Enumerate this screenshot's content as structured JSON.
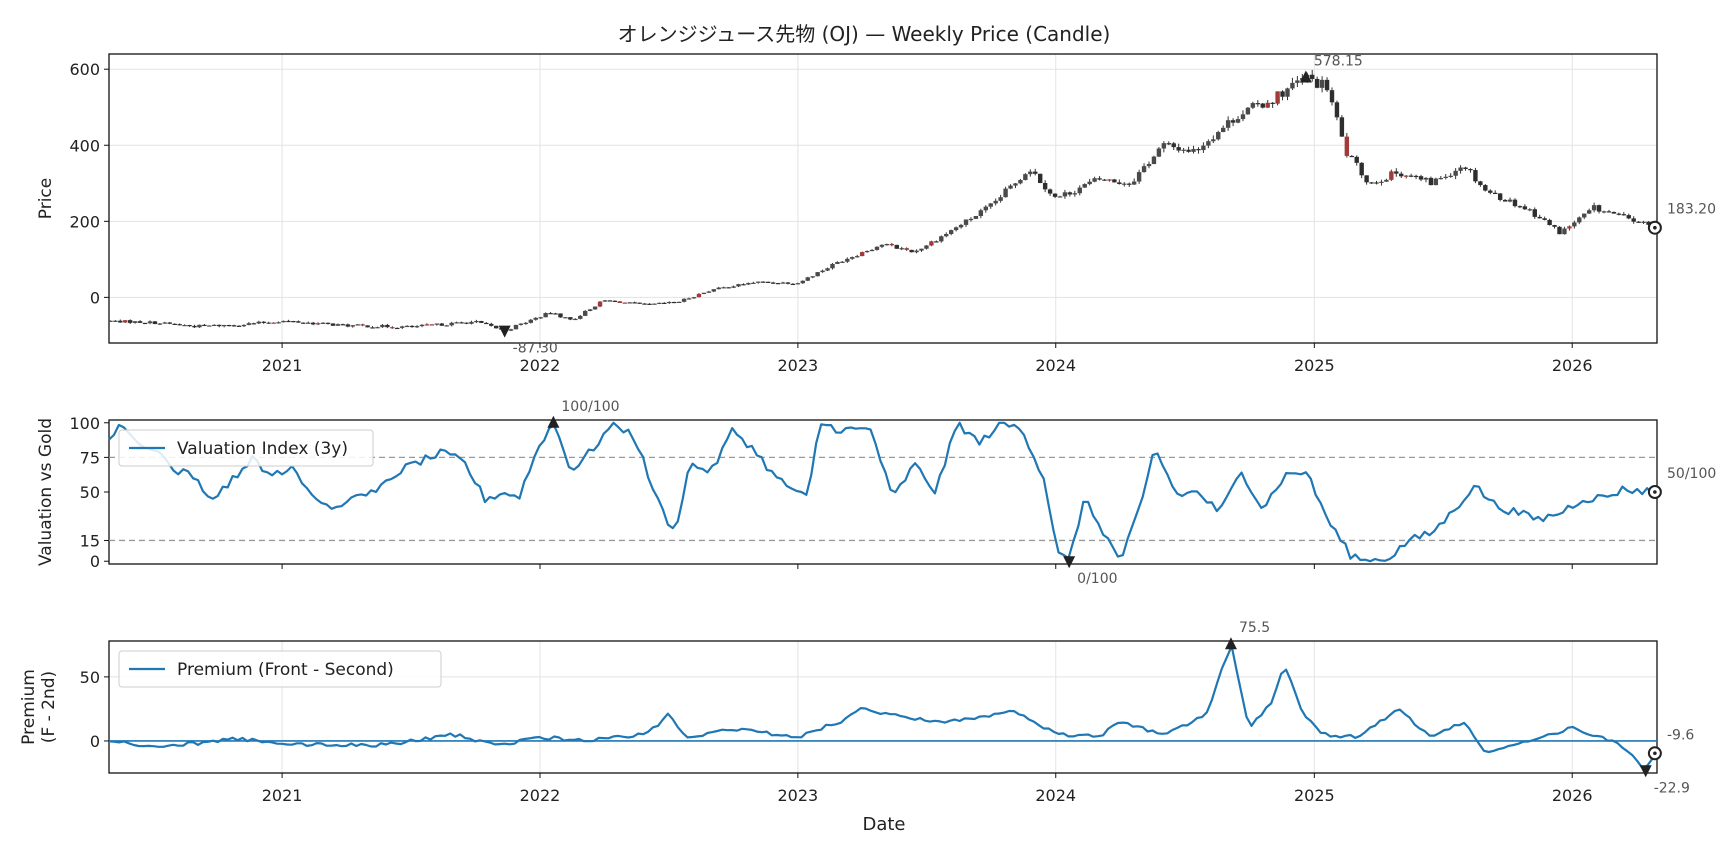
{
  "title": "オレンジジュース先物 (OJ) — Weekly Price (Candle)",
  "xlabel": "Date",
  "chart_data": [
    {
      "type": "candlestick",
      "ylabel": "Price",
      "yticks": [
        0,
        200,
        400,
        600
      ],
      "ylim": [
        -120,
        640
      ],
      "xlim": [
        "2020-05-01",
        "2026-05-01"
      ],
      "xticks": [
        "2021",
        "2022",
        "2023",
        "2024",
        "2025",
        "2026"
      ],
      "grid": true,
      "anchors": [
        [
          "2020-05-01",
          -62
        ],
        [
          "2020-07-01",
          -66
        ],
        [
          "2020-09-01",
          -76
        ],
        [
          "2020-11-01",
          -72
        ],
        [
          "2021-01-01",
          -62
        ],
        [
          "2021-04-01",
          -74
        ],
        [
          "2021-07-01",
          -78
        ],
        [
          "2021-10-01",
          -64
        ],
        [
          "2021-11-12",
          -87.3
        ],
        [
          "2022-01-15",
          -40
        ],
        [
          "2022-02-15",
          -60
        ],
        [
          "2022-04-01",
          -8
        ],
        [
          "2022-06-01",
          -20
        ],
        [
          "2022-07-15",
          -12
        ],
        [
          "2022-09-01",
          20
        ],
        [
          "2022-11-01",
          40
        ],
        [
          "2023-01-01",
          38
        ],
        [
          "2023-03-01",
          95
        ],
        [
          "2023-05-01",
          140
        ],
        [
          "2023-06-15",
          120
        ],
        [
          "2023-08-01",
          170
        ],
        [
          "2023-10-01",
          240
        ],
        [
          "2023-11-25",
          340
        ],
        [
          "2024-01-01",
          260
        ],
        [
          "2024-03-01",
          310
        ],
        [
          "2024-04-15",
          300
        ],
        [
          "2024-06-01",
          400
        ],
        [
          "2024-07-15",
          385
        ],
        [
          "2024-09-15",
          480
        ],
        [
          "2024-11-01",
          520
        ],
        [
          "2024-12-20",
          578.15
        ],
        [
          "2025-01-20",
          550
        ],
        [
          "2025-02-15",
          380
        ],
        [
          "2025-03-20",
          300
        ],
        [
          "2025-05-01",
          330
        ],
        [
          "2025-06-15",
          300
        ],
        [
          "2025-08-01",
          350
        ],
        [
          "2025-09-01",
          280
        ],
        [
          "2025-11-01",
          230
        ],
        [
          "2025-12-15",
          170
        ],
        [
          "2026-02-01",
          235
        ],
        [
          "2026-04-01",
          200
        ],
        [
          "2026-04-28",
          183.2
        ]
      ],
      "annotations": [
        {
          "text": "578.15",
          "date": "2024-12-20",
          "value": 578.15,
          "marker": "max"
        },
        {
          "text": "-87.30",
          "date": "2021-11-12",
          "value": -87.3,
          "marker": "min"
        },
        {
          "text": "183.20",
          "date": "2026-04-28",
          "value": 183.2,
          "marker": "last"
        }
      ]
    },
    {
      "type": "line",
      "ylabel": "Valuation vs Gold",
      "yticks": [
        0,
        15,
        50,
        75,
        100
      ],
      "ylim": [
        -2,
        102
      ],
      "reference_lines": [
        15,
        75
      ],
      "legend": "Valuation Index (3y)",
      "legend_position": "upper-left",
      "color": "#1f77b4",
      "anchors": [
        [
          "2020-05-01",
          88
        ],
        [
          "2020-05-20",
          99
        ],
        [
          "2020-06-15",
          84
        ],
        [
          "2020-07-10",
          80
        ],
        [
          "2020-08-01",
          66
        ],
        [
          "2020-09-01",
          60
        ],
        [
          "2020-09-20",
          45
        ],
        [
          "2020-10-20",
          58
        ],
        [
          "2020-11-20",
          75
        ],
        [
          "2020-12-15",
          62
        ],
        [
          "2021-01-15",
          68
        ],
        [
          "2021-02-15",
          48
        ],
        [
          "2021-03-15",
          38
        ],
        [
          "2021-04-15",
          45
        ],
        [
          "2021-05-15",
          50
        ],
        [
          "2021-06-15",
          65
        ],
        [
          "2021-07-15",
          72
        ],
        [
          "2021-08-15",
          78
        ],
        [
          "2021-09-15",
          72
        ],
        [
          "2021-10-15",
          45
        ],
        [
          "2021-11-15",
          50
        ],
        [
          "2021-12-01",
          45
        ],
        [
          "2022-01-01",
          85
        ],
        [
          "2022-01-20",
          100
        ],
        [
          "2022-02-15",
          65
        ],
        [
          "2022-03-15",
          80
        ],
        [
          "2022-04-15",
          100
        ],
        [
          "2022-05-15",
          90
        ],
        [
          "2022-06-15",
          45
        ],
        [
          "2022-07-10",
          20
        ],
        [
          "2022-08-01",
          70
        ],
        [
          "2022-09-01",
          65
        ],
        [
          "2022-10-01",
          95
        ],
        [
          "2022-11-01",
          80
        ],
        [
          "2022-12-01",
          60
        ],
        [
          "2023-01-15",
          45
        ],
        [
          "2023-02-01",
          100
        ],
        [
          "2023-03-01",
          95
        ],
        [
          "2023-04-15",
          95
        ],
        [
          "2023-05-15",
          45
        ],
        [
          "2023-06-15",
          70
        ],
        [
          "2023-07-15",
          50
        ],
        [
          "2023-08-15",
          100
        ],
        [
          "2023-09-15",
          85
        ],
        [
          "2023-10-15",
          100
        ],
        [
          "2023-11-15",
          95
        ],
        [
          "2023-12-15",
          60
        ],
        [
          "2024-01-05",
          5
        ],
        [
          "2024-01-20",
          0
        ],
        [
          "2024-02-10",
          45
        ],
        [
          "2024-03-10",
          20
        ],
        [
          "2024-04-01",
          0
        ],
        [
          "2024-05-01",
          40
        ],
        [
          "2024-05-20",
          82
        ],
        [
          "2024-06-20",
          48
        ],
        [
          "2024-07-20",
          50
        ],
        [
          "2024-08-20",
          35
        ],
        [
          "2024-09-20",
          65
        ],
        [
          "2024-10-20",
          38
        ],
        [
          "2024-11-20",
          62
        ],
        [
          "2024-12-20",
          65
        ],
        [
          "2025-01-20",
          30
        ],
        [
          "2025-02-20",
          5
        ],
        [
          "2025-03-15",
          0
        ],
        [
          "2025-04-15",
          2
        ],
        [
          "2025-05-15",
          15
        ],
        [
          "2025-06-15",
          20
        ],
        [
          "2025-07-15",
          35
        ],
        [
          "2025-08-15",
          55
        ],
        [
          "2025-09-15",
          40
        ],
        [
          "2025-10-15",
          35
        ],
        [
          "2025-11-15",
          30
        ],
        [
          "2025-12-15",
          35
        ],
        [
          "2026-01-15",
          45
        ],
        [
          "2026-02-15",
          46
        ],
        [
          "2026-03-15",
          52
        ],
        [
          "2026-04-28",
          50
        ]
      ],
      "annotations": [
        {
          "text": "100/100",
          "date": "2022-01-20",
          "value": 100,
          "marker": "max"
        },
        {
          "text": "0/100",
          "date": "2024-01-20",
          "value": 0,
          "marker": "min"
        },
        {
          "text": "50/100",
          "date": "2026-04-28",
          "value": 50,
          "marker": "last"
        }
      ]
    },
    {
      "type": "line",
      "ylabel_lines": [
        "Premium",
        "(F - 2nd)"
      ],
      "yticks": [
        0,
        50
      ],
      "ylim": [
        -25,
        78
      ],
      "reference_lines": [
        0
      ],
      "legend": "Premium (Front - Second)",
      "legend_position": "upper-left",
      "color": "#1f77b4",
      "anchors": [
        [
          "2020-05-01",
          0
        ],
        [
          "2020-07-01",
          -5
        ],
        [
          "2020-09-01",
          -2
        ],
        [
          "2020-11-01",
          2
        ],
        [
          "2021-01-01",
          -3
        ],
        [
          "2021-04-01",
          -3
        ],
        [
          "2021-06-01",
          -3
        ],
        [
          "2021-09-01",
          5
        ],
        [
          "2021-11-01",
          -4
        ],
        [
          "2022-01-01",
          3
        ],
        [
          "2022-03-01",
          0
        ],
        [
          "2022-06-01",
          5
        ],
        [
          "2022-07-01",
          20
        ],
        [
          "2022-08-01",
          2
        ],
        [
          "2022-10-01",
          10
        ],
        [
          "2022-12-01",
          5
        ],
        [
          "2023-01-01",
          3
        ],
        [
          "2023-03-01",
          15
        ],
        [
          "2023-04-01",
          25
        ],
        [
          "2023-06-01",
          18
        ],
        [
          "2023-08-01",
          15
        ],
        [
          "2023-10-01",
          20
        ],
        [
          "2023-11-01",
          25
        ],
        [
          "2023-12-15",
          10
        ],
        [
          "2024-01-15",
          5
        ],
        [
          "2024-03-01",
          3
        ],
        [
          "2024-04-01",
          15
        ],
        [
          "2024-06-01",
          5
        ],
        [
          "2024-08-01",
          20
        ],
        [
          "2024-09-05",
          75.5
        ],
        [
          "2024-10-01",
          10
        ],
        [
          "2024-11-01",
          30
        ],
        [
          "2024-11-20",
          60
        ],
        [
          "2024-12-15",
          22
        ],
        [
          "2025-01-15",
          5
        ],
        [
          "2025-03-01",
          3
        ],
        [
          "2025-05-01",
          25
        ],
        [
          "2025-06-15",
          2
        ],
        [
          "2025-08-01",
          15
        ],
        [
          "2025-09-01",
          -10
        ],
        [
          "2025-10-15",
          -3
        ],
        [
          "2025-12-01",
          5
        ],
        [
          "2026-01-01",
          10
        ],
        [
          "2026-02-15",
          2
        ],
        [
          "2026-03-15",
          -5
        ],
        [
          "2026-04-15",
          -22.9
        ],
        [
          "2026-04-28",
          -9.6
        ]
      ],
      "annotations": [
        {
          "text": "75.5",
          "date": "2024-09-05",
          "value": 75.5,
          "marker": "max"
        },
        {
          "text": "-22.9",
          "date": "2026-04-15",
          "value": -22.9,
          "marker": "min"
        },
        {
          "text": "-9.6",
          "date": "2026-04-28",
          "value": -9.6,
          "marker": "last"
        }
      ]
    }
  ]
}
